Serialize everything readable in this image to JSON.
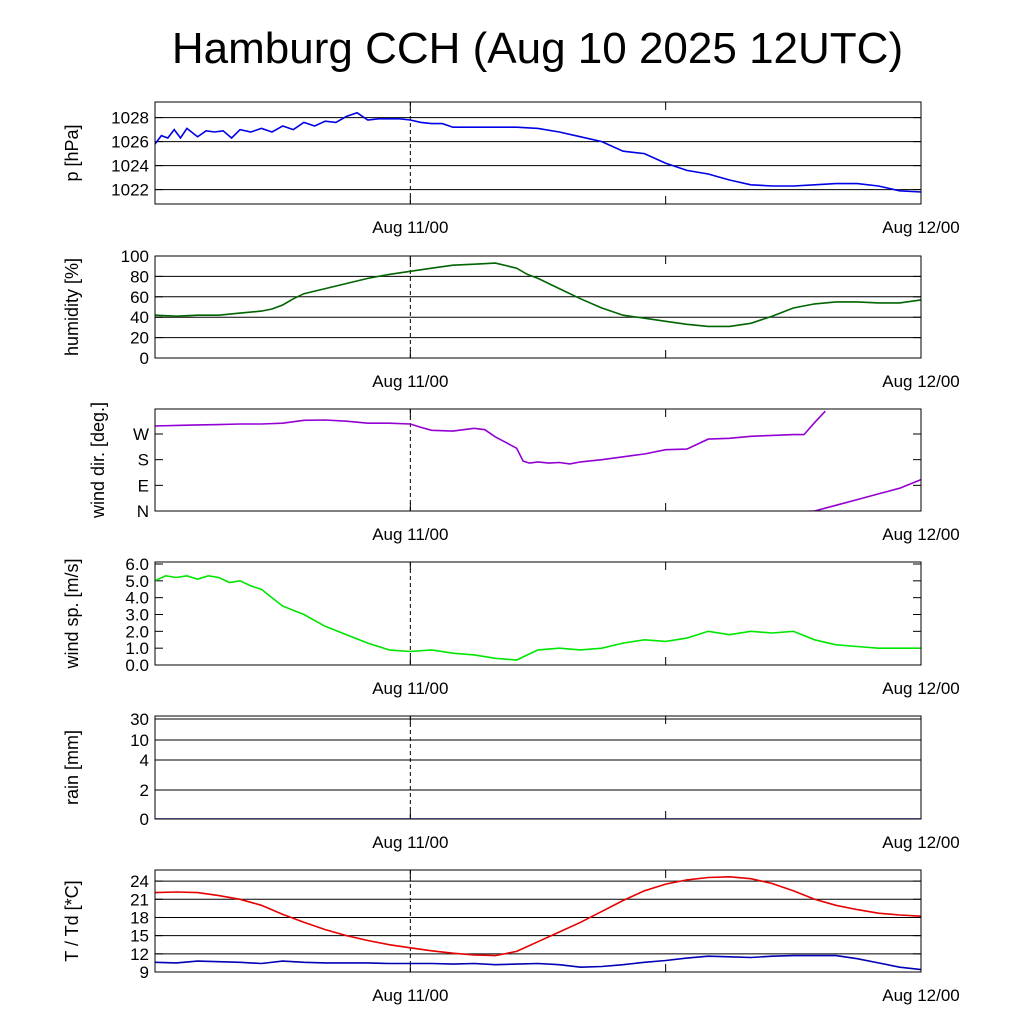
{
  "title": "Hamburg CCH (Aug 10 2025 12UTC)",
  "chart_data": [
    {
      "id": "pressure",
      "type": "line",
      "ylabel": "p [hPa]",
      "ylim": [
        1020.8,
        1029.3
      ],
      "yticks": [
        {
          "v": 1022,
          "label": "1022"
        },
        {
          "v": 1024,
          "label": "1024"
        },
        {
          "v": 1026,
          "label": "1026"
        },
        {
          "v": 1028,
          "label": "1028"
        }
      ],
      "grid": true,
      "xlim": [
        0,
        36
      ],
      "xticks": [
        {
          "t": 12,
          "label": "Aug 11/00"
        },
        {
          "t": 36,
          "label": "Aug 12/00"
        }
      ],
      "vline": 12,
      "series": [
        {
          "color": "#0000e6",
          "x": [
            0,
            0.3,
            0.6,
            0.9,
            1.2,
            1.5,
            2.0,
            2.4,
            2.8,
            3.2,
            3.6,
            4.0,
            4.5,
            5.0,
            5.5,
            6.0,
            6.5,
            7.0,
            7.5,
            8.0,
            8.5,
            9.0,
            9.5,
            10.0,
            10.5,
            11.0,
            11.5,
            12.0,
            12.5,
            13.0,
            13.5,
            14.0,
            15.0,
            16.0,
            17.0,
            18.0,
            19.0,
            20.0,
            21.0,
            22.0,
            23.0,
            24.0,
            25.0,
            26.0,
            27.0,
            28.0,
            29.0,
            30.0,
            31.0,
            32.0,
            33.0,
            34.0,
            35.0,
            36.0
          ],
          "y": [
            1025.8,
            1026.5,
            1026.3,
            1027.0,
            1026.3,
            1027.1,
            1026.4,
            1026.9,
            1026.8,
            1026.9,
            1026.3,
            1027.0,
            1026.8,
            1027.1,
            1026.8,
            1027.3,
            1027.0,
            1027.6,
            1027.3,
            1027.7,
            1027.6,
            1028.1,
            1028.4,
            1027.8,
            1027.9,
            1027.9,
            1027.9,
            1027.8,
            1027.6,
            1027.5,
            1027.5,
            1027.2,
            1027.2,
            1027.2,
            1027.2,
            1027.1,
            1026.8,
            1026.4,
            1026.0,
            1025.2,
            1025.0,
            1024.2,
            1023.6,
            1023.3,
            1022.8,
            1022.4,
            1022.3,
            1022.3,
            1022.4,
            1022.5,
            1022.5,
            1022.3,
            1021.9,
            1021.8
          ]
        }
      ]
    },
    {
      "id": "humidity",
      "type": "line",
      "ylabel": "humidity [%]",
      "ylim": [
        0,
        100
      ],
      "yticks": [
        {
          "v": 0,
          "label": "0"
        },
        {
          "v": 20,
          "label": "20"
        },
        {
          "v": 40,
          "label": "40"
        },
        {
          "v": 60,
          "label": "60"
        },
        {
          "v": 80,
          "label": "80"
        },
        {
          "v": 100,
          "label": "100"
        }
      ],
      "grid": true,
      "xlim": [
        0,
        36
      ],
      "xticks": [
        {
          "t": 12,
          "label": "Aug 11/00"
        },
        {
          "t": 36,
          "label": "Aug 12/00"
        }
      ],
      "vline": 12,
      "series": [
        {
          "color": "#006400",
          "x": [
            0,
            1,
            2,
            3,
            4,
            5,
            5.5,
            6,
            6.5,
            7,
            8,
            9,
            10,
            11,
            12,
            13,
            14,
            15,
            16,
            17,
            17.5,
            18,
            19,
            20,
            21,
            22,
            23,
            24,
            25,
            26,
            27,
            28,
            29,
            30,
            31,
            32,
            33,
            34,
            35,
            36
          ],
          "y": [
            42,
            41,
            42,
            42,
            44,
            46,
            48,
            52,
            58,
            63,
            68,
            73,
            78,
            82,
            85,
            88,
            91,
            92,
            93,
            88,
            82,
            78,
            68,
            58,
            49,
            42,
            39,
            36,
            33,
            31,
            31,
            34,
            41,
            49,
            53,
            55,
            55,
            54,
            54,
            57
          ]
        }
      ]
    },
    {
      "id": "wind-direction",
      "type": "line",
      "ylabel": "wind dir. [deg.]",
      "ylim": [
        0,
        360
      ],
      "yticks": [
        {
          "v": 0,
          "label": "N"
        },
        {
          "v": 90,
          "label": "E"
        },
        {
          "v": 180,
          "label": "S"
        },
        {
          "v": 270,
          "label": "W"
        }
      ],
      "grid": false,
      "xlim": [
        0,
        36
      ],
      "xticks": [
        {
          "t": 12,
          "label": "Aug 11/00"
        },
        {
          "t": 36,
          "label": "Aug 12/00"
        }
      ],
      "vline": 12,
      "series": [
        {
          "color": "#9400d3",
          "x": [
            0,
            1,
            2,
            3,
            4,
            5,
            6,
            7,
            8,
            9,
            10,
            11,
            12,
            12.5,
            13,
            14,
            15,
            15.5,
            16,
            16.5,
            17,
            17.3,
            17.6,
            18,
            18.5,
            19,
            19.5,
            20,
            21,
            22,
            23,
            24,
            25,
            26,
            27,
            28,
            29,
            30,
            30.5,
            31,
            31.5
          ],
          "y": [
            298,
            300,
            302,
            303,
            305,
            305,
            308,
            318,
            319,
            315,
            308,
            308,
            305,
            293,
            283,
            280,
            290,
            285,
            260,
            240,
            220,
            175,
            168,
            172,
            168,
            170,
            165,
            172,
            180,
            190,
            200,
            215,
            217,
            252,
            255,
            262,
            265,
            268,
            268,
            310,
            350
          ]
        },
        {
          "color": "#9400d3",
          "x": [
            30.3,
            31,
            32,
            33,
            34,
            35,
            36
          ],
          "y": [
            -2,
            0,
            20,
            40,
            60,
            80,
            110
          ]
        }
      ]
    },
    {
      "id": "wind-speed",
      "type": "line",
      "ylabel": "wind sp. [m/s]",
      "ylim": [
        0,
        6
      ],
      "yticks": [
        {
          "v": 0,
          "label": "0.0"
        },
        {
          "v": 1,
          "label": "1.0"
        },
        {
          "v": 2,
          "label": "2.0"
        },
        {
          "v": 3,
          "label": "3.0"
        },
        {
          "v": 4,
          "label": "4.0"
        },
        {
          "v": 5,
          "label": "5.0"
        },
        {
          "v": 6,
          "label": "6.0"
        }
      ],
      "grid": false,
      "xlim": [
        0,
        36
      ],
      "xticks": [
        {
          "t": 12,
          "label": "Aug 11/00"
        },
        {
          "t": 36,
          "label": "Aug 12/00"
        }
      ],
      "vline": 12,
      "series": [
        {
          "color": "#00e600",
          "x": [
            0,
            0.5,
            1,
            1.5,
            2,
            2.5,
            3,
            3.5,
            4,
            4.5,
            5,
            5.5,
            6,
            7,
            8,
            9,
            10,
            11,
            12,
            13,
            14,
            15,
            16,
            17,
            17.5,
            18,
            19,
            20,
            21,
            22,
            23,
            24,
            25,
            26,
            27,
            28,
            29,
            30,
            31,
            32,
            33,
            34,
            35,
            36
          ],
          "y": [
            5.0,
            5.3,
            5.2,
            5.3,
            5.1,
            5.3,
            5.2,
            4.9,
            5.0,
            4.7,
            4.5,
            4.0,
            3.5,
            3.0,
            2.3,
            1.8,
            1.3,
            0.9,
            0.8,
            0.9,
            0.7,
            0.6,
            0.4,
            0.3,
            0.6,
            0.9,
            1.0,
            0.9,
            1.0,
            1.3,
            1.5,
            1.4,
            1.6,
            2.0,
            1.8,
            2.0,
            1.9,
            2.0,
            1.5,
            1.2,
            1.1,
            1.0,
            1.0,
            1.0
          ]
        }
      ]
    },
    {
      "id": "rain",
      "type": "line",
      "ylabel": "rain [mm]",
      "ylim": [
        0,
        30
      ],
      "yticks": [
        {
          "v": 0,
          "label": "0"
        },
        {
          "v": 2,
          "label": "2"
        },
        {
          "v": 4,
          "label": "4"
        },
        {
          "v": 10,
          "label": "10"
        },
        {
          "v": 30,
          "label": "30"
        }
      ],
      "yscale": "nonlinear",
      "grid": true,
      "xlim": [
        0,
        36
      ],
      "xticks": [
        {
          "t": 12,
          "label": "Aug 11/00"
        },
        {
          "t": 36,
          "label": "Aug 12/00"
        }
      ],
      "vline": 12,
      "series": [
        {
          "color": "#0000e6",
          "x": [
            0,
            36
          ],
          "y": [
            0,
            0
          ]
        }
      ]
    },
    {
      "id": "temperature",
      "type": "line",
      "ylabel": "T / Td [*C]",
      "ylim": [
        9,
        25.5
      ],
      "yticks": [
        {
          "v": 9,
          "label": "9"
        },
        {
          "v": 12,
          "label": "12"
        },
        {
          "v": 15,
          "label": "15"
        },
        {
          "v": 18,
          "label": "18"
        },
        {
          "v": 21,
          "label": "21"
        },
        {
          "v": 24,
          "label": "24"
        }
      ],
      "grid": true,
      "xlim": [
        0,
        36
      ],
      "xticks": [
        {
          "t": 12,
          "label": "Aug 11/00"
        },
        {
          "t": 36,
          "label": "Aug 12/00"
        }
      ],
      "vline": 12,
      "series": [
        {
          "color": "#e60000",
          "x": [
            0,
            1,
            2,
            3,
            4,
            5,
            6,
            7,
            8,
            9,
            10,
            11,
            12,
            13,
            14,
            15,
            16,
            17,
            18,
            19,
            20,
            21,
            22,
            23,
            24,
            25,
            26,
            27,
            28,
            29,
            30,
            31,
            32,
            33,
            34,
            35,
            36
          ],
          "y": [
            22.1,
            22.2,
            22.1,
            21.6,
            21.0,
            20.0,
            18.5,
            17.2,
            16.0,
            15.0,
            14.2,
            13.5,
            13.0,
            12.5,
            12.1,
            11.8,
            11.7,
            12.4,
            14.0,
            15.6,
            17.2,
            19.0,
            20.8,
            22.4,
            23.5,
            24.2,
            24.6,
            24.7,
            24.4,
            23.6,
            22.4,
            21.0,
            20.0,
            19.3,
            18.7,
            18.4,
            18.2
          ]
        },
        {
          "color": "#0000b4",
          "x": [
            0,
            1,
            2,
            3,
            4,
            5,
            6,
            7,
            8,
            9,
            10,
            11,
            12,
            13,
            14,
            15,
            16,
            17,
            18,
            19,
            20,
            21,
            22,
            23,
            24,
            25,
            26,
            27,
            28,
            29,
            30,
            31,
            32,
            33,
            34,
            35,
            36
          ],
          "y": [
            10.6,
            10.5,
            10.8,
            10.7,
            10.6,
            10.4,
            10.8,
            10.6,
            10.5,
            10.5,
            10.5,
            10.4,
            10.4,
            10.4,
            10.3,
            10.4,
            10.2,
            10.3,
            10.4,
            10.2,
            9.8,
            9.9,
            10.2,
            10.6,
            10.9,
            11.3,
            11.6,
            11.5,
            11.4,
            11.6,
            11.7,
            11.7,
            11.7,
            11.2,
            10.5,
            9.8,
            9.4
          ]
        }
      ]
    }
  ]
}
